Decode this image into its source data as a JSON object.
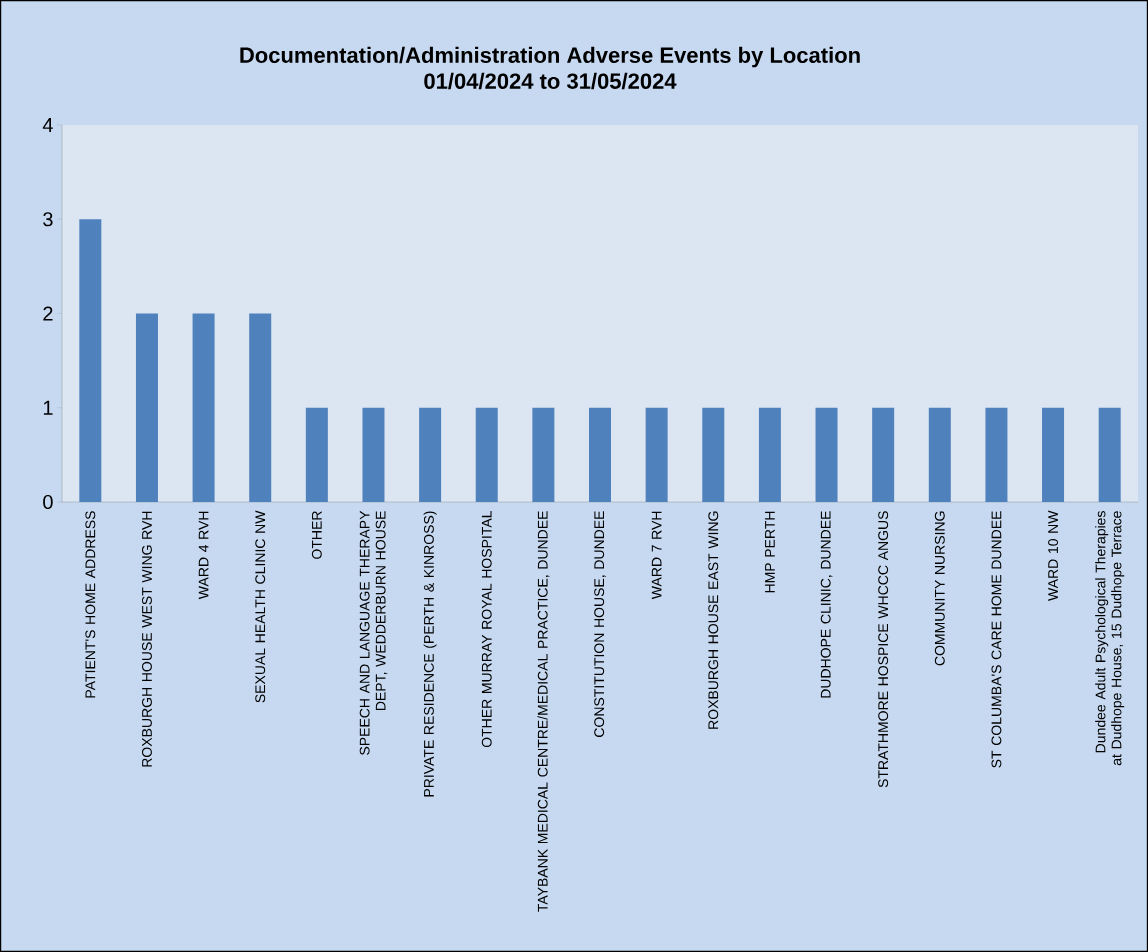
{
  "chart_data": {
    "type": "bar",
    "title": "Documentation/Administration Adverse Events by Location",
    "subtitle": "01/04/2024 to 31/05/2024",
    "categories": [
      "PATIENT'S HOME ADDRESS",
      "ROXBURGH HOUSE WEST WING RVH",
      "WARD 4 RVH",
      "SEXUAL HEALTH CLINIC NW",
      "OTHER",
      "SPEECH AND LANGUAGE THERAPY DEPT, WEDDERBURN HOUSE",
      "PRIVATE RESIDENCE (PERTH & KINROSS)",
      "OTHER MURRAY ROYAL HOSPITAL",
      "TAYBANK MEDICAL CENTRE/MEDICAL PRACTICE, DUNDEE",
      "CONSTITUTION HOUSE, DUNDEE",
      "WARD 7 RVH",
      "ROXBURGH HOUSE EAST WING",
      "HMP PERTH",
      "DUDHOPE CLINIC, DUNDEE",
      "STRATHMORE HOSPICE WHCCC ANGUS",
      "COMMUNITY NURSING",
      "ST COLUMBA'S CARE HOME DUNDEE",
      "WARD 10 NW",
      "Dundee Adult Psychological Therapies at Dudhope House, 15 Dudhope Terrace"
    ],
    "values": [
      3,
      2,
      2,
      2,
      1,
      1,
      1,
      1,
      1,
      1,
      1,
      1,
      1,
      1,
      1,
      1,
      1,
      1,
      1
    ],
    "color": "#4f81bd",
    "ylim": [
      0,
      4
    ],
    "yticks": [
      0,
      1,
      2,
      3,
      4
    ]
  }
}
